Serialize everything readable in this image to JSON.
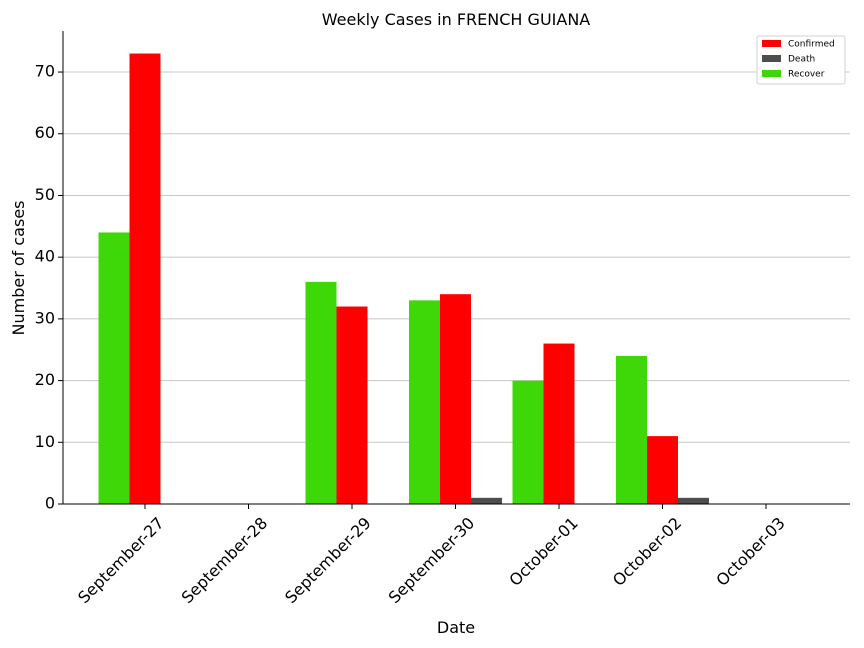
{
  "chart_data": {
    "type": "bar",
    "title": "Weekly Cases in FRENCH GUIANA",
    "xlabel": "Date",
    "ylabel": "Number of cases",
    "categories": [
      "September-27",
      "September-28",
      "September-29",
      "September-30",
      "October-01",
      "October-02",
      "October-03"
    ],
    "series": [
      {
        "name": "Recover",
        "color": "#3ed808",
        "values": [
          44,
          0,
          36,
          33,
          20,
          24,
          0
        ]
      },
      {
        "name": "Confirmed",
        "color": "#ff0000",
        "values": [
          73,
          0,
          32,
          34,
          26,
          11,
          0
        ]
      },
      {
        "name": "Death",
        "color": "#4d4d4d",
        "values": [
          0,
          0,
          0,
          1,
          0,
          1,
          0
        ]
      }
    ],
    "legend_order": [
      "Confirmed",
      "Death",
      "Recover"
    ],
    "legend_placement": "top-right",
    "yticks": [
      0,
      10,
      20,
      30,
      40,
      50,
      60,
      70
    ],
    "ylim": [
      0,
      76.65
    ],
    "grid": "y"
  }
}
